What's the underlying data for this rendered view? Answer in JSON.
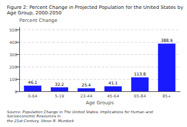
{
  "chart_data": {
    "type": "bar",
    "title": "Figure 2: Percent Change in Projected Population for the United States by Age Group, 2000-2050",
    "ylabel": "Percent Change",
    "xlabel": "Age Groups",
    "categories": [
      "0-64",
      "5-19",
      "23-44",
      "45-64",
      "65-84",
      "85+"
    ],
    "values": [
      46.1,
      32.2,
      25.4,
      41.1,
      113.8,
      388.9
    ],
    "color": "#1a1aff",
    "ylim": [
      0,
      520
    ],
    "yticks": [
      0,
      100,
      200,
      300,
      400,
      500
    ],
    "grid": true,
    "data_labels": true,
    "annotations": [
      "Source: Population Change in The United States: Implications for Human and Socioeconomic Resources in\nthe 21st Century, Steve R. Murdock"
    ]
  }
}
